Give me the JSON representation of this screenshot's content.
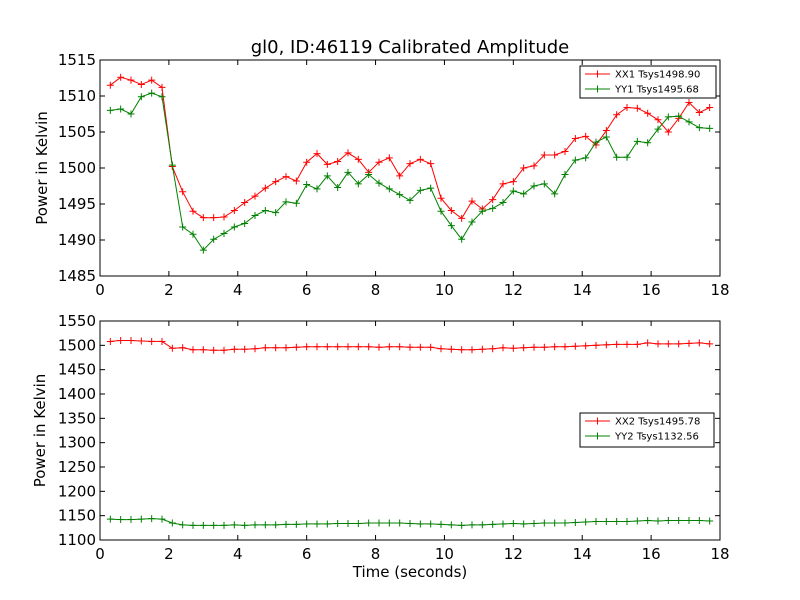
{
  "figure": {
    "title": "gl0, ID:46119 Calibrated Amplitude"
  },
  "chart_data": [
    {
      "type": "line",
      "title": "gl0, ID:46119 Calibrated Amplitude",
      "xlabel": "",
      "ylabel": "Power in Kelvin",
      "xlim": [
        0,
        18
      ],
      "ylim": [
        1485,
        1515
      ],
      "xticks": [
        0,
        2,
        4,
        6,
        8,
        10,
        12,
        14,
        16,
        18
      ],
      "yticks": [
        1485,
        1490,
        1495,
        1500,
        1505,
        1510,
        1515
      ],
      "grid": false,
      "legend_position": "top-right",
      "x": [
        0.3,
        0.6,
        0.9,
        1.2,
        1.5,
        1.8,
        2.1,
        2.4,
        2.7,
        3.0,
        3.3,
        3.6,
        3.9,
        4.2,
        4.5,
        4.8,
        5.1,
        5.4,
        5.7,
        6.0,
        6.3,
        6.6,
        6.9,
        7.2,
        7.5,
        7.8,
        8.1,
        8.4,
        8.7,
        9.0,
        9.3,
        9.6,
        9.9,
        10.2,
        10.5,
        10.8,
        11.1,
        11.4,
        11.7,
        12.0,
        12.3,
        12.6,
        12.9,
        13.2,
        13.5,
        13.8,
        14.1,
        14.4,
        14.7,
        15.0,
        15.3,
        15.6,
        15.9,
        16.2,
        16.5,
        16.8,
        17.1,
        17.4,
        17.7
      ],
      "series": [
        {
          "name": "XX1 Tsys1498.90",
          "color": "#ff0000",
          "values": [
            1511.5,
            1512.6,
            1512.2,
            1511.6,
            1512.2,
            1511.2,
            1500.2,
            1496.7,
            1494.0,
            1493.1,
            1493.1,
            1493.2,
            1494.1,
            1495.2,
            1496.1,
            1497.2,
            1498.1,
            1498.8,
            1498.2,
            1500.8,
            1502.0,
            1500.5,
            1500.9,
            1502.1,
            1501.2,
            1499.4,
            1500.8,
            1501.4,
            1498.9,
            1500.6,
            1501.2,
            1500.6,
            1495.8,
            1494.1,
            1493.0,
            1495.4,
            1494.3,
            1495.6,
            1497.8,
            1498.1,
            1500.0,
            1500.3,
            1501.8,
            1501.8,
            1502.3,
            1504.1,
            1504.4,
            1503.2,
            1505.2,
            1507.4,
            1508.4,
            1508.3,
            1507.6,
            1506.7,
            1505.0,
            1506.9,
            1509.1,
            1507.7,
            1508.4
          ]
        },
        {
          "name": "YY1 Tsys1495.68",
          "color": "#008000",
          "values": [
            1508.0,
            1508.2,
            1507.5,
            1509.9,
            1510.4,
            1509.9,
            1500.4,
            1491.8,
            1490.8,
            1488.6,
            1490.1,
            1490.9,
            1491.8,
            1492.3,
            1493.4,
            1494.1,
            1493.8,
            1495.3,
            1495.1,
            1497.7,
            1497.1,
            1498.9,
            1497.3,
            1499.4,
            1497.8,
            1499.1,
            1497.9,
            1497.1,
            1496.3,
            1495.5,
            1496.9,
            1497.2,
            1494.0,
            1492.0,
            1490.1,
            1492.5,
            1494.0,
            1494.4,
            1495.2,
            1496.8,
            1496.4,
            1497.5,
            1497.8,
            1496.4,
            1499.1,
            1501.1,
            1501.4,
            1503.6,
            1504.3,
            1501.5,
            1501.5,
            1503.7,
            1503.5,
            1505.4,
            1507.1,
            1507.2,
            1506.4,
            1505.6,
            1505.5
          ]
        }
      ]
    },
    {
      "type": "line",
      "title": "",
      "xlabel": "Time (seconds)",
      "ylabel": "Power in Kelvin",
      "xlim": [
        0,
        18
      ],
      "ylim": [
        1100,
        1550
      ],
      "xticks": [
        0,
        2,
        4,
        6,
        8,
        10,
        12,
        14,
        16,
        18
      ],
      "yticks": [
        1100,
        1150,
        1200,
        1250,
        1300,
        1350,
        1400,
        1450,
        1500,
        1550
      ],
      "grid": false,
      "legend_position": "center-right",
      "x": [
        0.3,
        0.6,
        0.9,
        1.2,
        1.5,
        1.8,
        2.1,
        2.4,
        2.7,
        3.0,
        3.3,
        3.6,
        3.9,
        4.2,
        4.5,
        4.8,
        5.1,
        5.4,
        5.7,
        6.0,
        6.3,
        6.6,
        6.9,
        7.2,
        7.5,
        7.8,
        8.1,
        8.4,
        8.7,
        9.0,
        9.3,
        9.6,
        9.9,
        10.2,
        10.5,
        10.8,
        11.1,
        11.4,
        11.7,
        12.0,
        12.3,
        12.6,
        12.9,
        13.2,
        13.5,
        13.8,
        14.1,
        14.4,
        14.7,
        15.0,
        15.3,
        15.6,
        15.9,
        16.2,
        16.5,
        16.8,
        17.1,
        17.4,
        17.7
      ],
      "series": [
        {
          "name": "XX2 Tsys1495.78",
          "color": "#ff0000",
          "values": [
            1508,
            1510,
            1510,
            1509,
            1508,
            1508,
            1494,
            1495,
            1491,
            1491,
            1490,
            1490,
            1492,
            1492,
            1493,
            1495,
            1495,
            1495,
            1496,
            1497,
            1497,
            1497,
            1497,
            1497,
            1497,
            1497,
            1496,
            1497,
            1497,
            1496,
            1496,
            1496,
            1493,
            1492,
            1491,
            1491,
            1492,
            1493,
            1495,
            1494,
            1495,
            1496,
            1496,
            1497,
            1497,
            1498,
            1499,
            1500,
            1501,
            1502,
            1502,
            1502,
            1505,
            1503,
            1503,
            1503,
            1504,
            1505,
            1503
          ]
        },
        {
          "name": "YY2 Tsys1132.56",
          "color": "#008000",
          "values": [
            1143,
            1142,
            1142,
            1143,
            1144,
            1143,
            1135,
            1131,
            1130,
            1130,
            1130,
            1130,
            1131,
            1130,
            1131,
            1131,
            1131,
            1132,
            1132,
            1133,
            1133,
            1133,
            1134,
            1134,
            1134,
            1135,
            1135,
            1135,
            1135,
            1134,
            1133,
            1133,
            1132,
            1131,
            1130,
            1131,
            1131,
            1132,
            1133,
            1134,
            1133,
            1134,
            1135,
            1135,
            1135,
            1136,
            1137,
            1138,
            1138,
            1138,
            1138,
            1139,
            1140,
            1139,
            1140,
            1140,
            1140,
            1140,
            1139
          ]
        }
      ]
    }
  ]
}
